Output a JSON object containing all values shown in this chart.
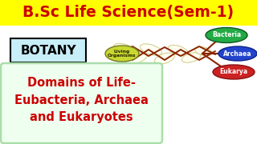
{
  "title": "B.Sc Life Science(Sem-1)",
  "title_color": "#cc0000",
  "title_bg": "#ffff00",
  "title_fontsize": 13.5,
  "botany_label": "BOTANY",
  "botany_bg": "#c8eef8",
  "botany_fontsize": 11,
  "living_label": "Living\nOrganisms",
  "living_bg": "#c8d832",
  "bacteria_label": "Bacteria",
  "bacteria_bg": "#22aa44",
  "archaea_label": "Archaea",
  "archaea_bg": "#2244cc",
  "eukarya_label": "Eukarya",
  "eukarya_bg": "#cc2222",
  "main_text_line1": "Domains of Life-",
  "main_text_line2": "Eubacteria, Archaea",
  "main_text_line3": "and Eukaryotes",
  "main_text_color": "#cc0000",
  "main_text_bg": "#efffef",
  "main_border_color": "#aaddaa",
  "main_fontsize": 10.5,
  "bg_color": "#ffffff",
  "dna_color": "#8B2500",
  "dna_fill": "#fffff0",
  "dna_edge": "#cccc88"
}
